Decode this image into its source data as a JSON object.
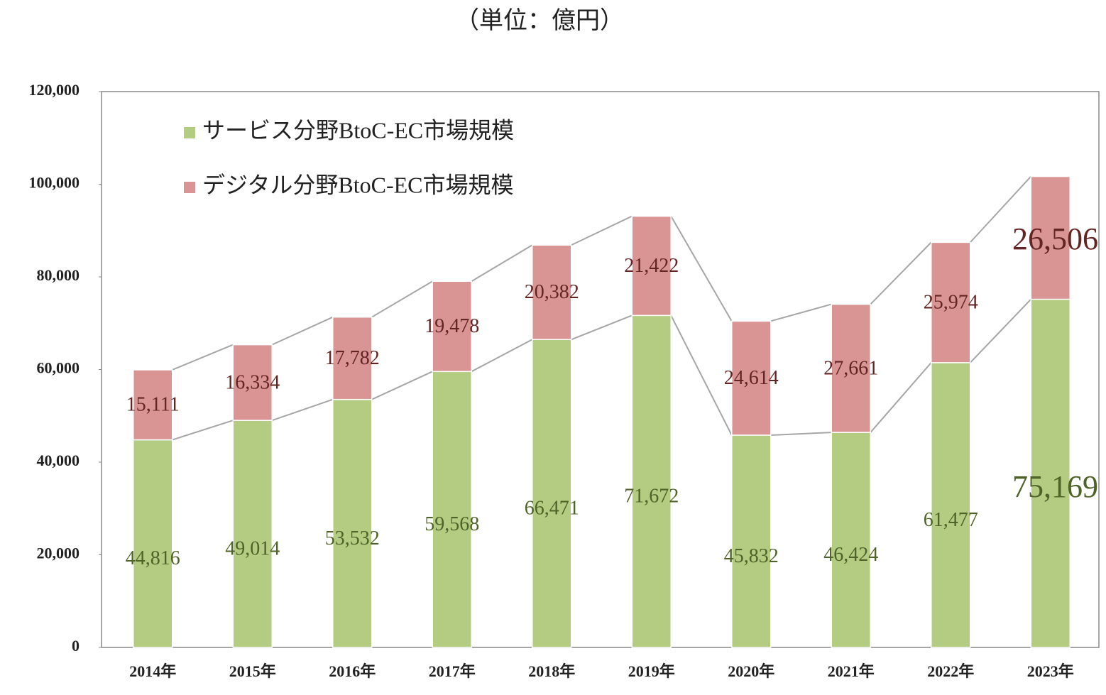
{
  "chart_data": {
    "type": "stacked-bar",
    "title": "（単位：億円）",
    "categories": [
      "2014年",
      "2015年",
      "2016年",
      "2017年",
      "2018年",
      "2019年",
      "2020年",
      "2021年",
      "2022年",
      "2023年"
    ],
    "series": [
      {
        "name": "サービス分野BtoC-EC市場規模",
        "color": "#b3cc82",
        "label_color": "#4f6228",
        "values": [
          44816,
          49014,
          53532,
          59568,
          66471,
          71672,
          45832,
          46424,
          61477,
          75169
        ],
        "value_labels": [
          "44,816",
          "49,014",
          "53,532",
          "59,568",
          "66,471",
          "71,672",
          "45,832",
          "46,424",
          "61,477",
          "75,169"
        ]
      },
      {
        "name": "デジタル分野BtoC-EC市場規模",
        "color": "#d99594",
        "label_color": "#632523",
        "values": [
          15111,
          16334,
          17782,
          19478,
          20382,
          21422,
          24614,
          27661,
          25974,
          26506
        ],
        "value_labels": [
          "15,111",
          "16,334",
          "17,782",
          "19,478",
          "20,382",
          "21,422",
          "24,614",
          "27,661",
          "25,974",
          "26,506"
        ]
      }
    ],
    "ylim": [
      0,
      120000
    ],
    "yticks": [
      0,
      {
        "value": 20000,
        "label": "20,000"
      },
      {
        "value": 40000,
        "label": "40,000"
      },
      {
        "value": 60000,
        "label": "60,000"
      },
      {
        "value": 80000,
        "label": "80,000"
      },
      {
        "value": 100000,
        "label": "100,000"
      },
      {
        "value": 120000,
        "label": "120,000"
      }
    ],
    "grid": false,
    "legend": "upper left"
  }
}
